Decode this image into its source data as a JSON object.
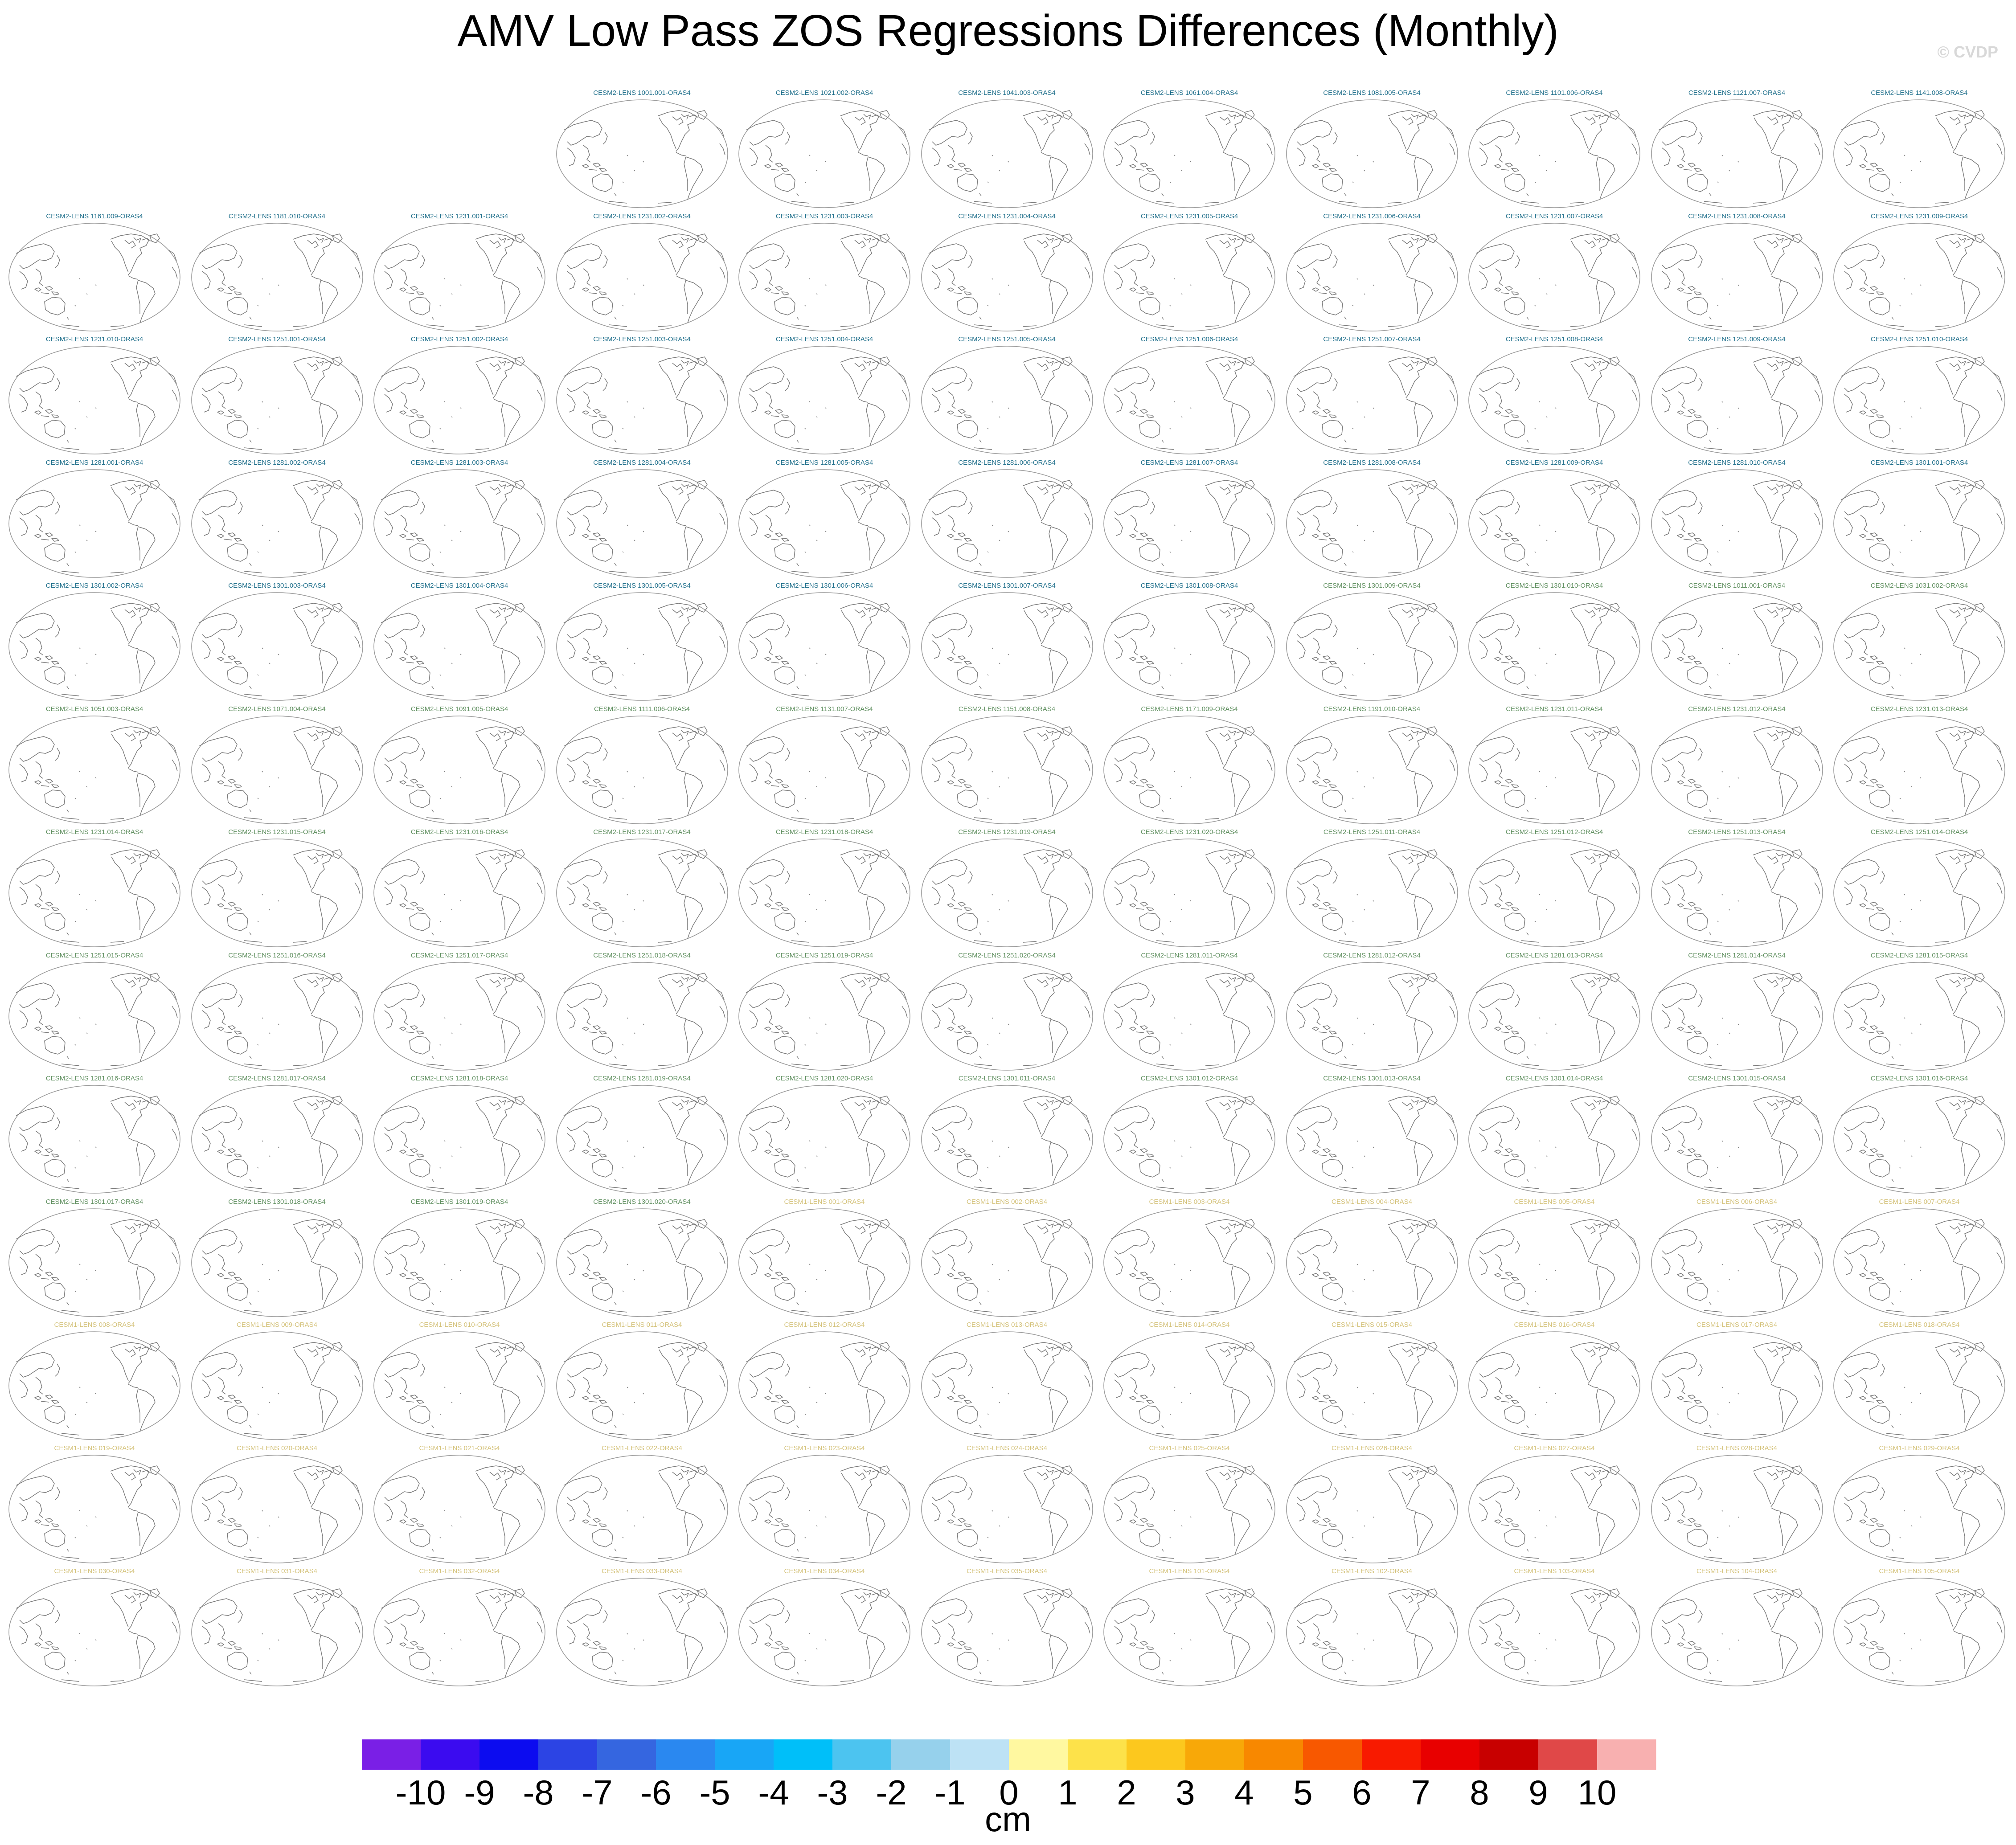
{
  "title": "AMV Low Pass ZOS Regressions Differences (Monthly)",
  "watermark": "© CVDP",
  "colors": {
    "cesm2_first": "#1f6f8b",
    "cesm2_second": "#5f8f5f",
    "cesm1": "#d4c27a",
    "coastline": "#7a7a7a",
    "map_outline": "#9a9a9a"
  },
  "panels": {
    "columns": 11,
    "empty_leading_cells": 3,
    "titles": [
      "CESM2-LENS 1001.001-ORAS4",
      "CESM2-LENS 1021.002-ORAS4",
      "CESM2-LENS 1041.003-ORAS4",
      "CESM2-LENS 1061.004-ORAS4",
      "CESM2-LENS 1081.005-ORAS4",
      "CESM2-LENS 1101.006-ORAS4",
      "CESM2-LENS 1121.007-ORAS4",
      "CESM2-LENS 1141.008-ORAS4",
      "CESM2-LENS 1161.009-ORAS4",
      "CESM2-LENS 1181.010-ORAS4",
      "CESM2-LENS 1231.001-ORAS4",
      "CESM2-LENS 1231.002-ORAS4",
      "CESM2-LENS 1231.003-ORAS4",
      "CESM2-LENS 1231.004-ORAS4",
      "CESM2-LENS 1231.005-ORAS4",
      "CESM2-LENS 1231.006-ORAS4",
      "CESM2-LENS 1231.007-ORAS4",
      "CESM2-LENS 1231.008-ORAS4",
      "CESM2-LENS 1231.009-ORAS4",
      "CESM2-LENS 1231.010-ORAS4",
      "CESM2-LENS 1251.001-ORAS4",
      "CESM2-LENS 1251.002-ORAS4",
      "CESM2-LENS 1251.003-ORAS4",
      "CESM2-LENS 1251.004-ORAS4",
      "CESM2-LENS 1251.005-ORAS4",
      "CESM2-LENS 1251.006-ORAS4",
      "CESM2-LENS 1251.007-ORAS4",
      "CESM2-LENS 1251.008-ORAS4",
      "CESM2-LENS 1251.009-ORAS4",
      "CESM2-LENS 1251.010-ORAS4",
      "CESM2-LENS 1281.001-ORAS4",
      "CESM2-LENS 1281.002-ORAS4",
      "CESM2-LENS 1281.003-ORAS4",
      "CESM2-LENS 1281.004-ORAS4",
      "CESM2-LENS 1281.005-ORAS4",
      "CESM2-LENS 1281.006-ORAS4",
      "CESM2-LENS 1281.007-ORAS4",
      "CESM2-LENS 1281.008-ORAS4",
      "CESM2-LENS 1281.009-ORAS4",
      "CESM2-LENS 1281.010-ORAS4",
      "CESM2-LENS 1301.001-ORAS4",
      "CESM2-LENS 1301.002-ORAS4",
      "CESM2-LENS 1301.003-ORAS4",
      "CESM2-LENS 1301.004-ORAS4",
      "CESM2-LENS 1301.005-ORAS4",
      "CESM2-LENS 1301.006-ORAS4",
      "CESM2-LENS 1301.007-ORAS4",
      "CESM2-LENS 1301.008-ORAS4",
      "CESM2-LENS 1301.009-ORAS4",
      "CESM2-LENS 1301.010-ORAS4",
      "CESM2-LENS 1011.001-ORAS4",
      "CESM2-LENS 1031.002-ORAS4",
      "CESM2-LENS 1051.003-ORAS4",
      "CESM2-LENS 1071.004-ORAS4",
      "CESM2-LENS 1091.005-ORAS4",
      "CESM2-LENS 1111.006-ORAS4",
      "CESM2-LENS 1131.007-ORAS4",
      "CESM2-LENS 1151.008-ORAS4",
      "CESM2-LENS 1171.009-ORAS4",
      "CESM2-LENS 1191.010-ORAS4",
      "CESM2-LENS 1231.011-ORAS4",
      "CESM2-LENS 1231.012-ORAS4",
      "CESM2-LENS 1231.013-ORAS4",
      "CESM2-LENS 1231.014-ORAS4",
      "CESM2-LENS 1231.015-ORAS4",
      "CESM2-LENS 1231.016-ORAS4",
      "CESM2-LENS 1231.017-ORAS4",
      "CESM2-LENS 1231.018-ORAS4",
      "CESM2-LENS 1231.019-ORAS4",
      "CESM2-LENS 1231.020-ORAS4",
      "CESM2-LENS 1251.011-ORAS4",
      "CESM2-LENS 1251.012-ORAS4",
      "CESM2-LENS 1251.013-ORAS4",
      "CESM2-LENS 1251.014-ORAS4",
      "CESM2-LENS 1251.015-ORAS4",
      "CESM2-LENS 1251.016-ORAS4",
      "CESM2-LENS 1251.017-ORAS4",
      "CESM2-LENS 1251.018-ORAS4",
      "CESM2-LENS 1251.019-ORAS4",
      "CESM2-LENS 1251.020-ORAS4",
      "CESM2-LENS 1281.011-ORAS4",
      "CESM2-LENS 1281.012-ORAS4",
      "CESM2-LENS 1281.013-ORAS4",
      "CESM2-LENS 1281.014-ORAS4",
      "CESM2-LENS 1281.015-ORAS4",
      "CESM2-LENS 1281.016-ORAS4",
      "CESM2-LENS 1281.017-ORAS4",
      "CESM2-LENS 1281.018-ORAS4",
      "CESM2-LENS 1281.019-ORAS4",
      "CESM2-LENS 1281.020-ORAS4",
      "CESM2-LENS 1301.011-ORAS4",
      "CESM2-LENS 1301.012-ORAS4",
      "CESM2-LENS 1301.013-ORAS4",
      "CESM2-LENS 1301.014-ORAS4",
      "CESM2-LENS 1301.015-ORAS4",
      "CESM2-LENS 1301.016-ORAS4",
      "CESM2-LENS 1301.017-ORAS4",
      "CESM2-LENS 1301.018-ORAS4",
      "CESM2-LENS 1301.019-ORAS4",
      "CESM2-LENS 1301.020-ORAS4",
      "CESM1-LENS 001-ORAS4",
      "CESM1-LENS 002-ORAS4",
      "CESM1-LENS 003-ORAS4",
      "CESM1-LENS 004-ORAS4",
      "CESM1-LENS 005-ORAS4",
      "CESM1-LENS 006-ORAS4",
      "CESM1-LENS 007-ORAS4",
      "CESM1-LENS 008-ORAS4",
      "CESM1-LENS 009-ORAS4",
      "CESM1-LENS 010-ORAS4",
      "CESM1-LENS 011-ORAS4",
      "CESM1-LENS 012-ORAS4",
      "CESM1-LENS 013-ORAS4",
      "CESM1-LENS 014-ORAS4",
      "CESM1-LENS 015-ORAS4",
      "CESM1-LENS 016-ORAS4",
      "CESM1-LENS 017-ORAS4",
      "CESM1-LENS 018-ORAS4",
      "CESM1-LENS 019-ORAS4",
      "CESM1-LENS 020-ORAS4",
      "CESM1-LENS 021-ORAS4",
      "CESM1-LENS 022-ORAS4",
      "CESM1-LENS 023-ORAS4",
      "CESM1-LENS 024-ORAS4",
      "CESM1-LENS 025-ORAS4",
      "CESM1-LENS 026-ORAS4",
      "CESM1-LENS 027-ORAS4",
      "CESM1-LENS 028-ORAS4",
      "CESM1-LENS 029-ORAS4",
      "CESM1-LENS 030-ORAS4",
      "CESM1-LENS 031-ORAS4",
      "CESM1-LENS 032-ORAS4",
      "CESM1-LENS 033-ORAS4",
      "CESM1-LENS 034-ORAS4",
      "CESM1-LENS 035-ORAS4",
      "CESM1-LENS 101-ORAS4",
      "CESM1-LENS 102-ORAS4",
      "CESM1-LENS 103-ORAS4",
      "CESM1-LENS 104-ORAS4",
      "CESM1-LENS 105-ORAS4"
    ]
  },
  "chart_data": {
    "type": "heatmap",
    "title": "AMV Low Pass ZOS Regressions Differences (Monthly)",
    "colorbar": {
      "unit_label": "cm",
      "tick_labels": [
        "-10",
        "-9",
        "-8",
        "-7",
        "-6",
        "-5",
        "-4",
        "-3",
        "-2",
        "-1",
        "0",
        "1",
        "2",
        "3",
        "4",
        "5",
        "6",
        "7",
        "8",
        "9",
        "10"
      ],
      "levels": [
        -10,
        -9,
        -8,
        -7,
        -6,
        -5,
        -4,
        -3,
        -2,
        -1,
        0,
        1,
        2,
        3,
        4,
        5,
        6,
        7,
        8,
        9,
        10
      ],
      "colors": [
        "#7a1fe6",
        "#3b0bf0",
        "#0c0cf0",
        "#2c44e4",
        "#3566e0",
        "#2a88f0",
        "#18a6f6",
        "#00bff9",
        "#4cc4f0",
        "#96d1ec",
        "#bde2f5",
        "#fff8a0",
        "#fde24a",
        "#fcc81e",
        "#f8a808",
        "#f88800",
        "#f85800",
        "#f81a00",
        "#e80000",
        "#c80000",
        "#e04848",
        "#f8b0b0"
      ]
    }
  }
}
